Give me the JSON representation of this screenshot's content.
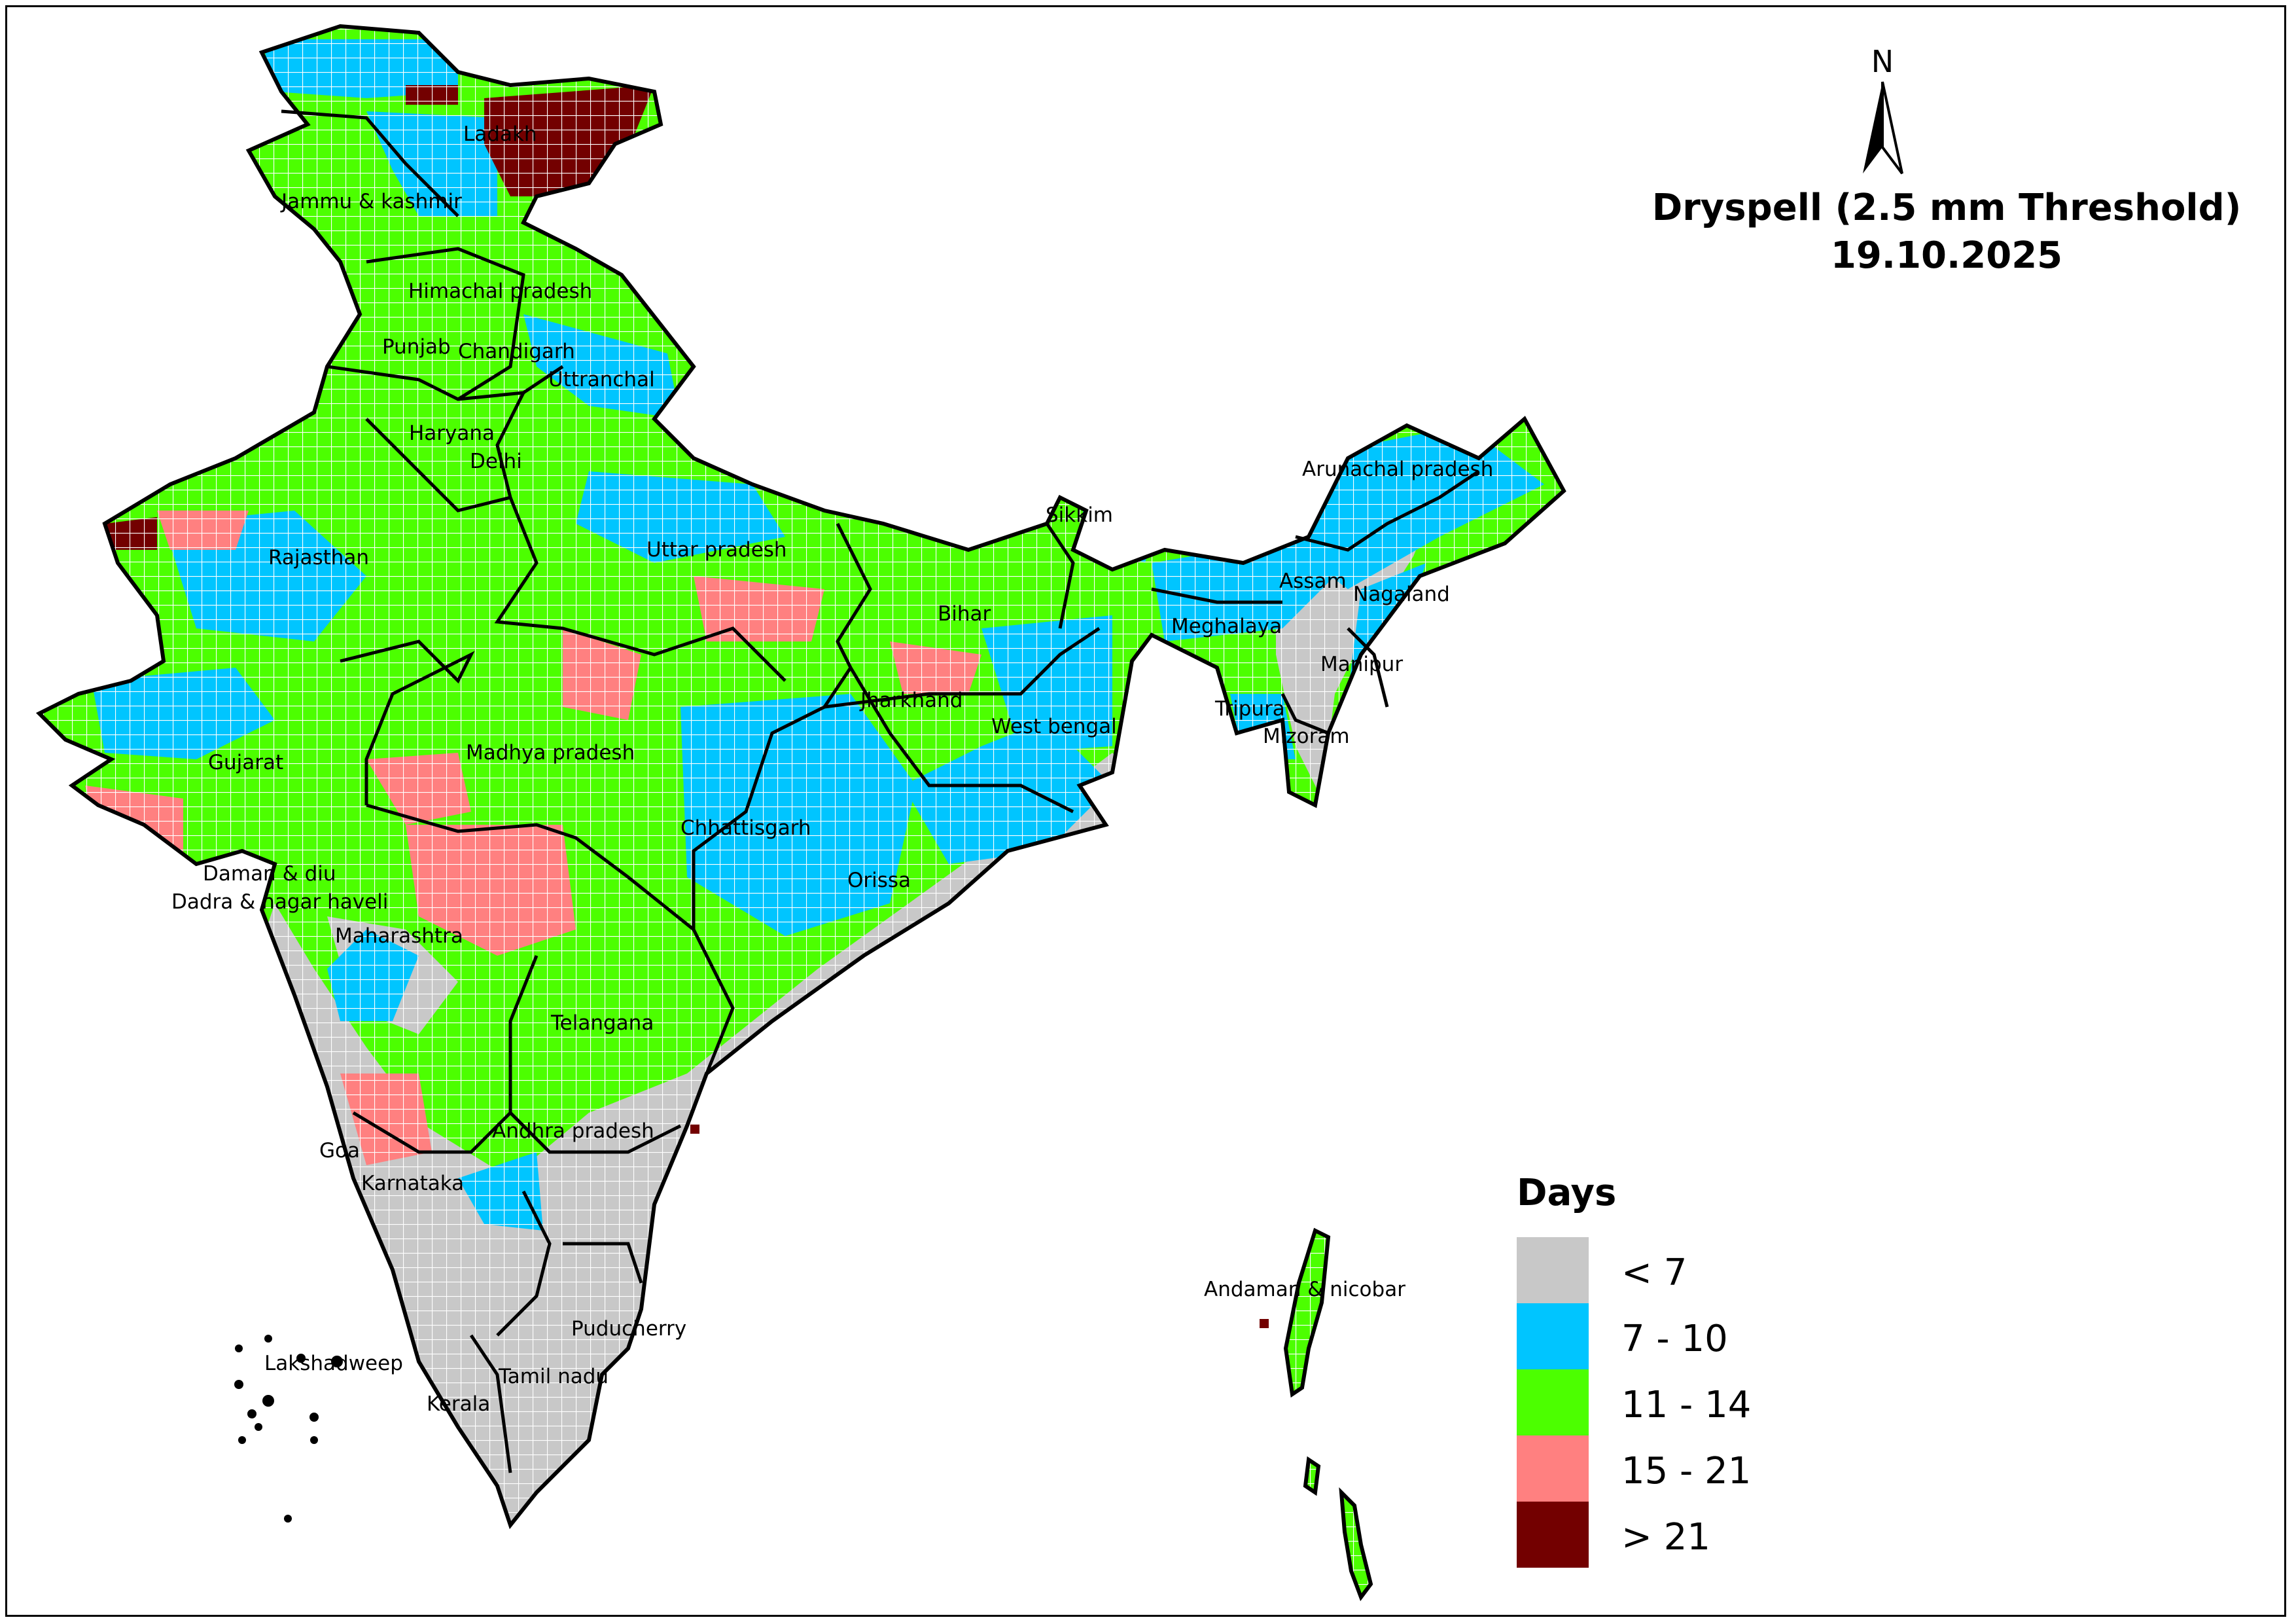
{
  "title": {
    "line1": "Dryspell (2.5 mm Threshold)",
    "line2": "19.10.2025"
  },
  "north_arrow": {
    "label": "N"
  },
  "legend": {
    "title": "Days",
    "items": [
      {
        "label": "< 7",
        "color": "#c8c8c8"
      },
      {
        "label": "7 - 10",
        "color": "#00c5ff"
      },
      {
        "label": "11 - 14",
        "color": "#4cff00"
      },
      {
        "label": "15 - 21",
        "color": "#ff8080"
      },
      {
        "label": "> 21",
        "color": "#730000"
      }
    ]
  },
  "regions": [
    "Ladakh",
    "Jammu & kashmir",
    "Himachal pradesh",
    "Punjab",
    "Chandigarh",
    "Uttranchal",
    "Haryana",
    "Delhi",
    "Rajasthan",
    "Uttar pradesh",
    "Bihar",
    "Sikkim",
    "Arunachal pradesh",
    "Assam",
    "Nagaland",
    "Meghalaya",
    "Manipur",
    "Tripura",
    "Mizoram",
    "Jharkhand",
    "West bengal",
    "Gujarat",
    "Madhya pradesh",
    "Chhattisgarh",
    "Orissa",
    "Daman & diu",
    "Dadra & nagar haveli",
    "Maharashtra",
    "Telangana",
    "Andhra pradesh",
    "Goa",
    "Karnataka",
    "Andaman & nicobar",
    "Puducherry",
    "Lakshadweep",
    "Tamil nadu",
    "Kerala"
  ]
}
